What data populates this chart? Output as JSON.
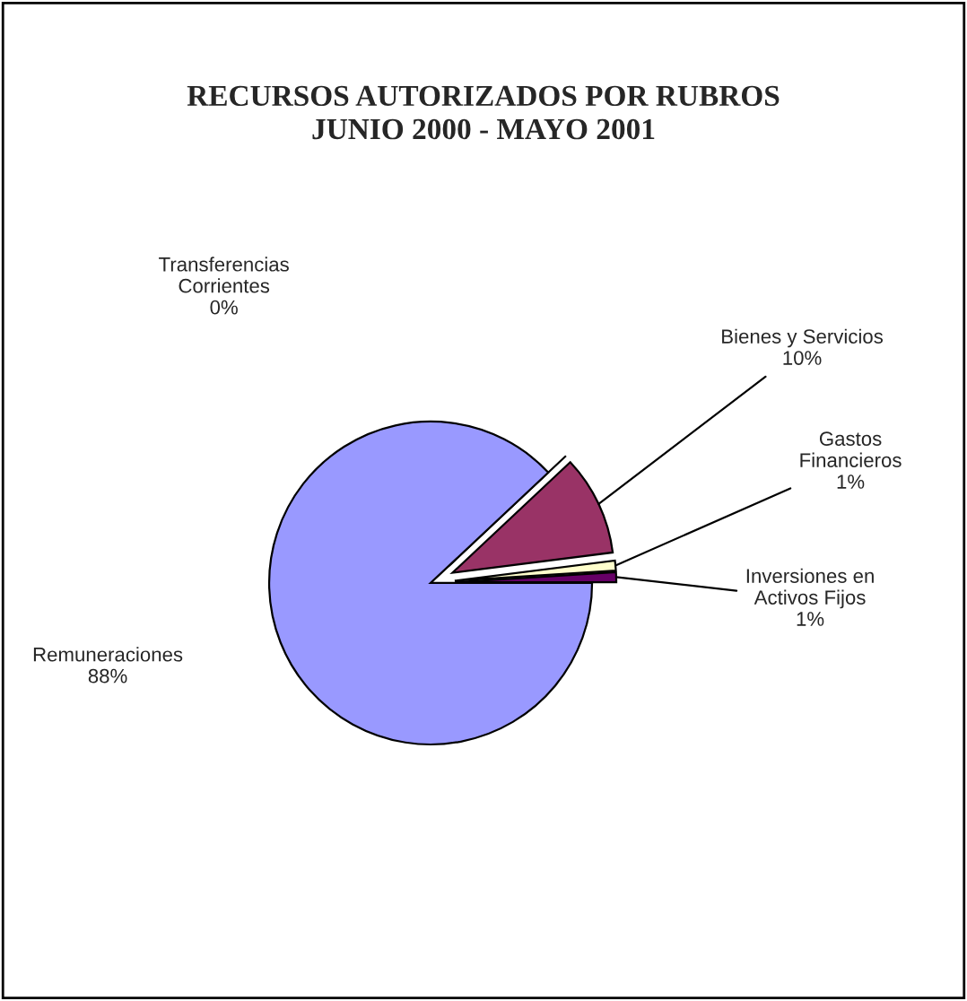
{
  "chart_data": {
    "type": "pie",
    "title": "RECURSOS AUTORIZADOS POR RUBROS\nJUNIO 2000 - MAYO 2001",
    "categories": [
      "Inversiones en\nActivos Fijos",
      "Gastos\nFinancieros",
      "Bienes y Servicios",
      "Transferencias\nCorrientes",
      "Remuneraciones"
    ],
    "values": [
      1,
      1,
      10,
      0,
      88
    ],
    "value_labels": [
      "1%",
      "1%",
      "10%",
      "0%",
      "88%"
    ],
    "colors": [
      "#660066",
      "#ffffcc",
      "#993366",
      "#ccffff",
      "#9999ff"
    ],
    "legend": false
  }
}
